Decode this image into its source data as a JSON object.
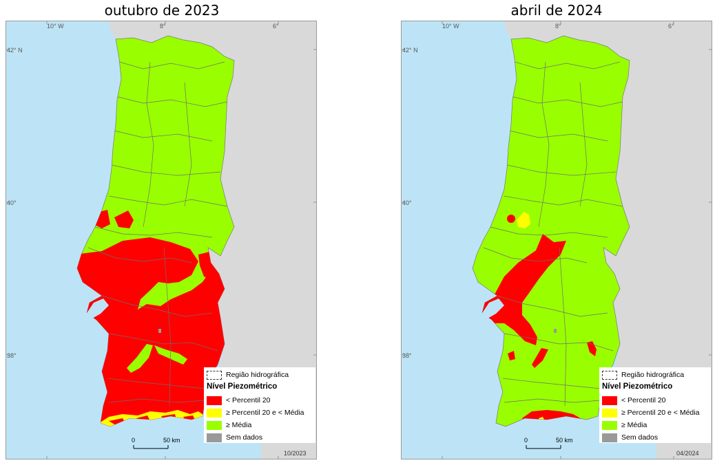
{
  "maps": [
    {
      "title": "outubro de 2023",
      "date_stamp": "10/2023",
      "lon_labels": [
        "10° W",
        "8°",
        "6°"
      ],
      "lat_labels": [
        "42° N",
        "40°",
        "38°"
      ],
      "legend": {
        "boundary_label": "Região hidrográfica",
        "title": "Nível Piezométrico",
        "items": [
          {
            "label": "< Percentil 20",
            "color": "#ff0000"
          },
          {
            "label": "≥ Percentil 20 e < Média",
            "color": "#ffff00"
          },
          {
            "label": "≥ Média",
            "color": "#99ff00"
          },
          {
            "label": "Sem dados",
            "color": "#999999"
          }
        ]
      },
      "scale_bar": {
        "start": "0",
        "end": "50 km"
      }
    },
    {
      "title": "abril de 2024",
      "date_stamp": "04/2024",
      "lon_labels": [
        "10° W",
        "8°",
        "6°"
      ],
      "lat_labels": [
        "42° N",
        "40°",
        "38°"
      ],
      "legend": {
        "boundary_label": "Região hidrográfica",
        "title": "Nível Piezométrico",
        "items": [
          {
            "label": "< Percentil 20",
            "color": "#ff0000"
          },
          {
            "label": "≥ Percentil 20 e < Média",
            "color": "#ffff00"
          },
          {
            "label": "≥ Média",
            "color": "#99ff00"
          },
          {
            "label": "Sem dados",
            "color": "#999999"
          }
        ]
      },
      "scale_bar": {
        "start": "0",
        "end": "50 km"
      }
    }
  ],
  "colors": {
    "sea": "#bde4f6",
    "land_outside": "#d9d9d9",
    "below_p20": "#ff0000",
    "p20_to_mean": "#ffff00",
    "above_mean": "#99ff00",
    "no_data": "#999999"
  }
}
